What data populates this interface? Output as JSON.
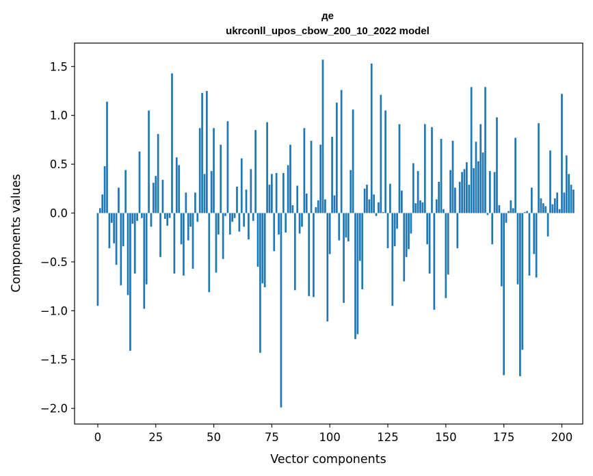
{
  "chart_data": {
    "type": "bar",
    "title_line1": "де",
    "title_line2": "ukrconll_upos_cbow_200_10_2022 model",
    "xlabel": "Vector components",
    "ylabel": "Components values",
    "xlim": [
      -10,
      209
    ],
    "ylim": [
      -2.16,
      1.74
    ],
    "xticks": [
      0,
      25,
      50,
      75,
      100,
      125,
      150,
      175,
      200
    ],
    "yticks": [
      1.5,
      1.0,
      0.5,
      0.0,
      -0.5,
      -1.0,
      -1.5,
      -2.0
    ],
    "ytick_labels": [
      "1.5",
      "1.0",
      "0.5",
      "0.0",
      "−0.5",
      "−1.0",
      "−1.5",
      "−2.0"
    ],
    "grid": false,
    "bar_color": "#1f77b4",
    "values": [
      -0.95,
      0.05,
      0.19,
      0.48,
      1.14,
      -0.36,
      -0.1,
      -0.31,
      -0.53,
      0.26,
      -0.74,
      -0.34,
      0.44,
      -0.84,
      -1.41,
      -0.11,
      -0.62,
      -0.08,
      0.63,
      -0.05,
      -0.98,
      -0.73,
      1.05,
      -0.14,
      0.31,
      0.38,
      0.81,
      -0.45,
      0.34,
      -0.06,
      -0.13,
      -0.05,
      1.43,
      -0.62,
      0.57,
      0.49,
      -0.32,
      -0.64,
      0.21,
      -0.28,
      -0.14,
      -0.57,
      0.21,
      -0.09,
      0.87,
      1.23,
      0.4,
      1.25,
      -0.81,
      0.43,
      0.87,
      -0.61,
      -0.22,
      0.7,
      -0.47,
      -0.03,
      0.94,
      -0.22,
      -0.09,
      -0.05,
      0.27,
      -0.19,
      0.56,
      -0.14,
      0.24,
      -0.27,
      0.45,
      -0.08,
      0.85,
      -0.55,
      -1.43,
      -0.72,
      -0.76,
      0.93,
      0.29,
      0.4,
      -0.39,
      0.41,
      -0.22,
      -1.99,
      0.41,
      -0.2,
      0.49,
      0.7,
      0.08,
      -0.79,
      0.28,
      -0.21,
      -0.14,
      0.87,
      0.2,
      -0.85,
      0.74,
      -0.86,
      0.06,
      0.13,
      0.7,
      1.57,
      0.14,
      -1.11,
      -0.42,
      0.78,
      0.18,
      1.13,
      -0.28,
      1.26,
      -0.92,
      -0.25,
      -0.29,
      0.44,
      1.06,
      -1.29,
      -1.24,
      -0.49,
      -0.78,
      0.25,
      0.29,
      0.14,
      1.53,
      0.19,
      -0.03,
      0.11,
      1.21,
      0.01,
      1.05,
      -0.36,
      0.3,
      -0.95,
      -0.34,
      -0.16,
      0.91,
      0.23,
      -0.7,
      -0.45,
      -0.37,
      -0.21,
      0.51,
      0.1,
      0.43,
      0.13,
      0.11,
      0.91,
      -0.32,
      -0.62,
      0.88,
      -0.99,
      0.14,
      0.32,
      0.76,
      0.04,
      -0.87,
      -0.63,
      0.44,
      0.74,
      0.26,
      -0.36,
      0.32,
      0.42,
      0.45,
      0.52,
      0.29,
      1.29,
      0.46,
      0.73,
      0.53,
      0.91,
      0.62,
      1.29,
      -0.02,
      0.43,
      -0.32,
      0.42,
      0.98,
      0.08,
      -0.75,
      -1.66,
      -0.1,
      0.02,
      0.13,
      0.05,
      0.77,
      -0.73,
      -1.67,
      -1.4,
      0.01,
      0.02,
      -0.64,
      0.26,
      -0.42,
      -0.66,
      0.92,
      0.15,
      0.1,
      0.07,
      -0.24,
      0.64,
      0.09,
      0.15,
      0.21,
      0.04,
      1.22,
      0.21,
      0.59,
      0.4,
      0.29,
      0.24
    ]
  }
}
